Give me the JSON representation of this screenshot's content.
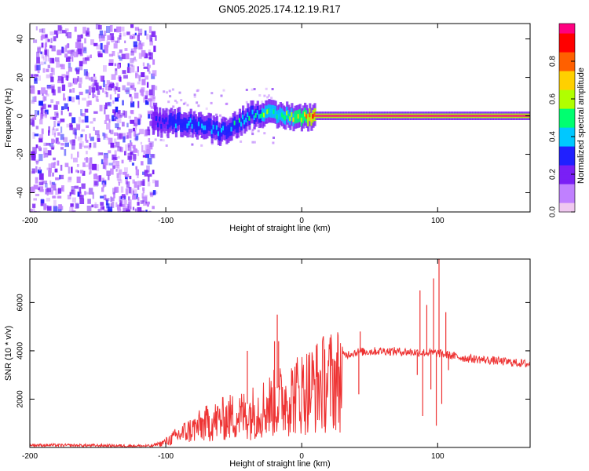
{
  "figure_title": "GN05.2025.174.12.19.R17",
  "chart_data": [
    {
      "type": "heatmap",
      "xlabel": "Height of straight line (km)",
      "ylabel": "Frequency (Hz)",
      "xlim": [
        -200,
        168
      ],
      "ylim": [
        -50,
        48
      ],
      "x_ticks": [
        -200,
        -100,
        0,
        100
      ],
      "x_tick_labels": [
        "-200",
        "-100",
        "0",
        "100"
      ],
      "y_ticks": [
        -40,
        -20,
        0,
        20,
        40
      ],
      "y_tick_labels": [
        "-40",
        "-20",
        "0",
        "20",
        "40"
      ],
      "colorbar": {
        "label": "Normalized spectral amplitude",
        "range": [
          0,
          1
        ],
        "ticks": [
          0,
          0.2,
          0.4,
          0.6,
          0.8
        ],
        "tick_labels": [
          "0.0",
          "0.2",
          "0.4",
          "0.6",
          "0.8"
        ],
        "colormap": [
          "#f0c8f0",
          "#c080ff",
          "#7a1ff5",
          "#2020ff",
          "#00c8ff",
          "#00ff70",
          "#b0ff00",
          "#ffd000",
          "#ff6000",
          "#ff0000",
          "#ff0080"
        ]
      },
      "noise_region_x": [
        -200,
        -110
      ],
      "ridge": [
        {
          "x": -110,
          "y": -3,
          "amp": 0.3
        },
        {
          "x": -100,
          "y": -4,
          "amp": 0.35
        },
        {
          "x": -90,
          "y": -3,
          "amp": 0.4
        },
        {
          "x": -80,
          "y": -4,
          "amp": 0.38
        },
        {
          "x": -70,
          "y": -6,
          "amp": 0.4
        },
        {
          "x": -60,
          "y": -8,
          "amp": 0.36
        },
        {
          "x": -50,
          "y": -5,
          "amp": 0.42
        },
        {
          "x": -40,
          "y": 0,
          "amp": 0.45
        },
        {
          "x": -30,
          "y": 2,
          "amp": 0.5
        },
        {
          "x": -20,
          "y": 0,
          "amp": 0.55
        },
        {
          "x": -10,
          "y": 0,
          "amp": 0.6
        },
        {
          "x": 0,
          "y": -1,
          "amp": 0.7
        },
        {
          "x": 10,
          "y": 0,
          "amp": 0.95
        },
        {
          "x": 168,
          "y": 0,
          "amp": 0.95
        }
      ],
      "grid": false
    },
    {
      "type": "line",
      "xlabel": "Height of straight line (km)",
      "ylabel": "SNR (10 * v/v)",
      "xlim": [
        -200,
        168
      ],
      "ylim": [
        0,
        7800
      ],
      "x_ticks": [
        -200,
        -100,
        0,
        100
      ],
      "x_tick_labels": [
        "-200",
        "-100",
        "0",
        "100"
      ],
      "y_ticks": [
        2000,
        4000,
        6000
      ],
      "y_tick_labels": [
        "2000",
        "4000",
        "6000"
      ],
      "series": [
        {
          "color": "#ee3333",
          "envelope": [
            {
              "x": -200,
              "y": 100
            },
            {
              "x": -150,
              "y": 80
            },
            {
              "x": -110,
              "y": 60
            },
            {
              "x": -100,
              "y": 300
            },
            {
              "x": -90,
              "y": 700
            },
            {
              "x": -80,
              "y": 1000
            },
            {
              "x": -70,
              "y": 1300
            },
            {
              "x": -60,
              "y": 1500
            },
            {
              "x": -50,
              "y": 1700
            },
            {
              "x": -40,
              "y": 1800
            },
            {
              "x": -30,
              "y": 2100
            },
            {
              "x": -20,
              "y": 2400
            },
            {
              "x": -10,
              "y": 2700
            },
            {
              "x": 0,
              "y": 3000
            },
            {
              "x": 10,
              "y": 3300
            },
            {
              "x": 20,
              "y": 3600
            },
            {
              "x": 30,
              "y": 3800
            },
            {
              "x": 40,
              "y": 3950
            },
            {
              "x": 60,
              "y": 4000
            },
            {
              "x": 80,
              "y": 3950
            },
            {
              "x": 100,
              "y": 3900
            },
            {
              "x": 120,
              "y": 3700
            },
            {
              "x": 140,
              "y": 3600
            },
            {
              "x": 168,
              "y": 3450
            }
          ],
          "spikes": [
            {
              "x": -40,
              "y": 4000
            },
            {
              "x": -20,
              "y": 4400
            },
            {
              "x": -18,
              "y": 5500
            },
            {
              "x": -17,
              "y": 4400
            },
            {
              "x": 42,
              "y": 2200
            },
            {
              "x": 43,
              "y": 4800
            },
            {
              "x": 85,
              "y": 3000
            },
            {
              "x": 87,
              "y": 6500
            },
            {
              "x": 89,
              "y": 1300
            },
            {
              "x": 92,
              "y": 5900
            },
            {
              "x": 95,
              "y": 2400
            },
            {
              "x": 97,
              "y": 7000
            },
            {
              "x": 99,
              "y": 900
            },
            {
              "x": 101,
              "y": 7800
            },
            {
              "x": 103,
              "y": 1800
            },
            {
              "x": 106,
              "y": 5600
            },
            {
              "x": 108,
              "y": 3200
            }
          ]
        }
      ],
      "grid": false
    }
  ]
}
